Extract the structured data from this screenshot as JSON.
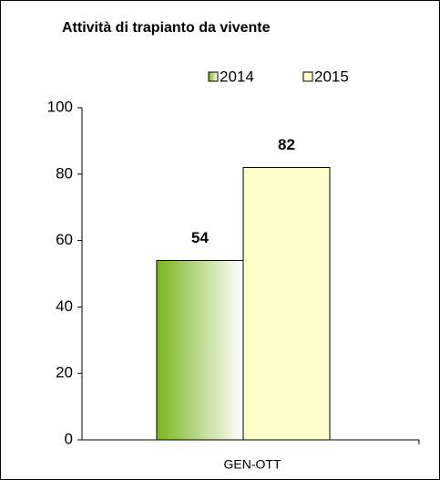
{
  "chart_data": {
    "type": "bar",
    "title": "Attività di trapianto da vivente",
    "categories": [
      "GEN-OTT"
    ],
    "series": [
      {
        "name": "2014",
        "color": "#7ab51d",
        "values": [
          54
        ]
      },
      {
        "name": "2015",
        "color": "#ffffcc",
        "values": [
          82
        ]
      }
    ],
    "ylim": [
      0,
      100
    ],
    "yticks": [
      0,
      20,
      40,
      60,
      80,
      100
    ],
    "grid": false,
    "legend": "top"
  }
}
